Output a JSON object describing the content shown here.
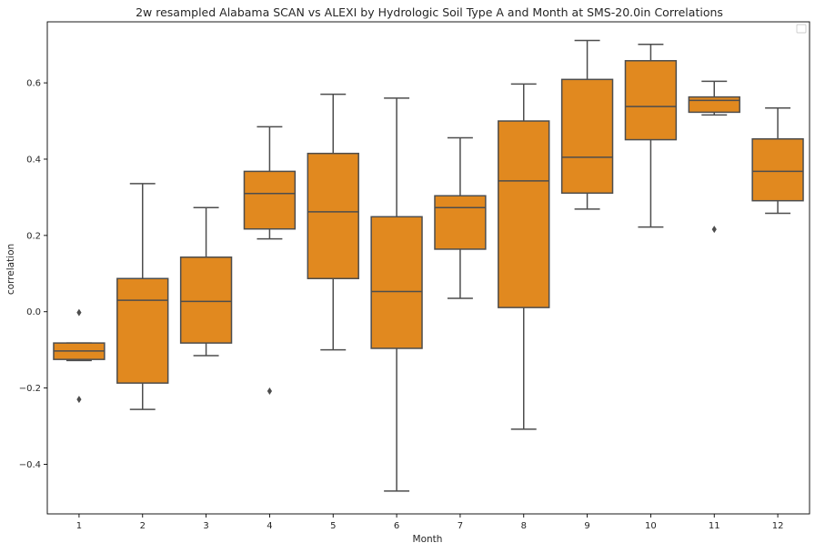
{
  "chart_data": {
    "type": "box",
    "title": "2w resampled Alabama SCAN vs ALEXI by Hydrologic Soil Type A and Month at SMS-20.0in Correlations",
    "xlabel": "Month",
    "ylabel": "correlation",
    "categories": [
      "1",
      "2",
      "3",
      "4",
      "5",
      "6",
      "7",
      "8",
      "9",
      "10",
      "11",
      "12"
    ],
    "ylim": [
      -0.53,
      0.76
    ],
    "yticks": [
      -0.4,
      -0.2,
      0.0,
      0.2,
      0.4,
      0.6
    ],
    "ytick_labels": [
      "−0.4",
      "−0.2",
      "0.0",
      "0.2",
      "0.4",
      "0.6"
    ],
    "grid": false,
    "legend": "top-right (empty)",
    "box_color": "#e1891f",
    "edge_color": "#4d4d4d",
    "boxes": [
      {
        "month": "1",
        "whisker_low": -0.128,
        "q1": -0.125,
        "median": -0.103,
        "q3": -0.082,
        "whisker_high": -0.082,
        "outliers": [
          -0.002,
          -0.23
        ]
      },
      {
        "month": "2",
        "whisker_low": -0.256,
        "q1": -0.187,
        "median": 0.03,
        "q3": 0.087,
        "whisker_high": 0.336,
        "outliers": []
      },
      {
        "month": "3",
        "whisker_low": -0.115,
        "q1": -0.082,
        "median": 0.027,
        "q3": 0.143,
        "whisker_high": 0.273,
        "outliers": []
      },
      {
        "month": "4",
        "whisker_low": 0.191,
        "q1": 0.217,
        "median": 0.31,
        "q3": 0.368,
        "whisker_high": 0.485,
        "outliers": [
          -0.208
        ]
      },
      {
        "month": "5",
        "whisker_low": -0.1,
        "q1": 0.087,
        "median": 0.262,
        "q3": 0.415,
        "whisker_high": 0.57,
        "outliers": []
      },
      {
        "month": "6",
        "whisker_low": -0.47,
        "q1": -0.096,
        "median": 0.053,
        "q3": 0.249,
        "whisker_high": 0.56,
        "outliers": []
      },
      {
        "month": "7",
        "whisker_low": 0.035,
        "q1": 0.164,
        "median": 0.273,
        "q3": 0.304,
        "whisker_high": 0.456,
        "outliers": []
      },
      {
        "month": "8",
        "whisker_low": -0.308,
        "q1": 0.011,
        "median": 0.343,
        "q3": 0.5,
        "whisker_high": 0.597,
        "outliers": []
      },
      {
        "month": "9",
        "whisker_low": 0.269,
        "q1": 0.311,
        "median": 0.405,
        "q3": 0.609,
        "whisker_high": 0.711,
        "outliers": []
      },
      {
        "month": "10",
        "whisker_low": 0.222,
        "q1": 0.451,
        "median": 0.538,
        "q3": 0.658,
        "whisker_high": 0.701,
        "outliers": []
      },
      {
        "month": "11",
        "whisker_low": 0.516,
        "q1": 0.523,
        "median": 0.554,
        "q3": 0.563,
        "whisker_high": 0.604,
        "outliers": [
          0.216
        ]
      },
      {
        "month": "12",
        "whisker_low": 0.258,
        "q1": 0.291,
        "median": 0.368,
        "q3": 0.453,
        "whisker_high": 0.534,
        "outliers": []
      }
    ]
  }
}
